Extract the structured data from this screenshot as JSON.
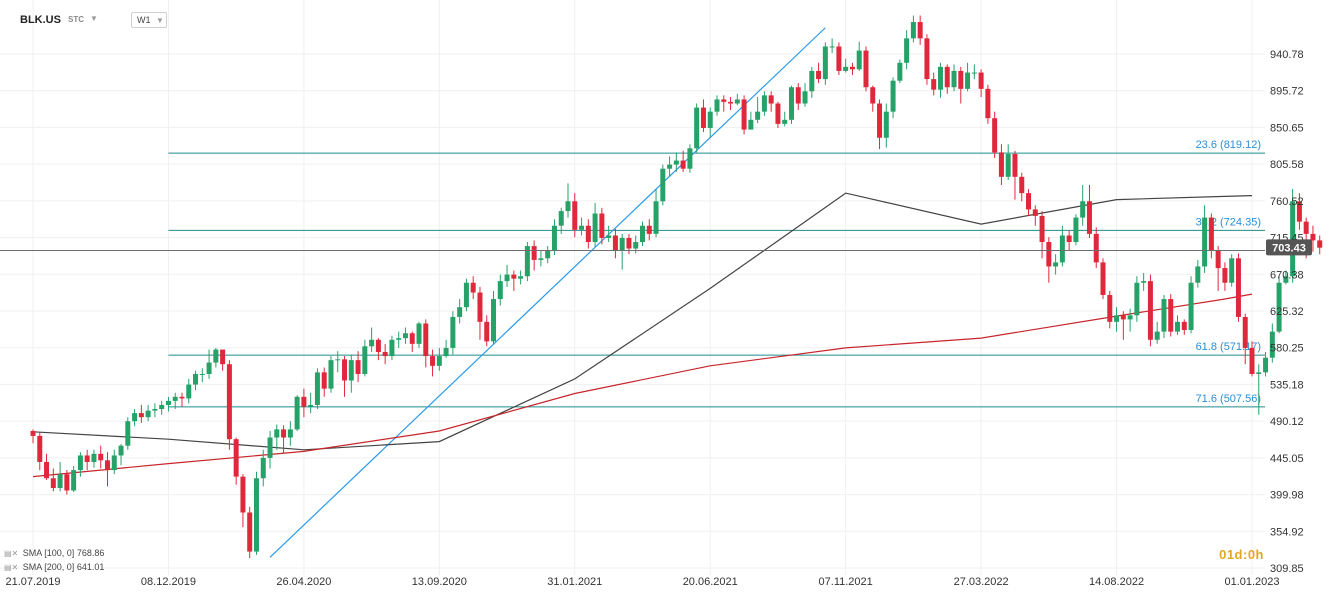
{
  "header": {
    "symbol": "BLK.US",
    "exchange": "STC",
    "timeframe": "W1"
  },
  "watermark": "01d:0h",
  "colors": {
    "up": "#26a269",
    "down": "#e0283c",
    "sma100": "#444444",
    "sma200": "#c8252b",
    "fib": "#1f8b8b",
    "fib_label": "#2a8fd6",
    "trendline": "#2a9bea",
    "price_badge": "#555555"
  },
  "chart_data": {
    "type": "candlestick",
    "title": "",
    "xlabel": "",
    "ylabel": "",
    "ylim": [
      300,
      997
    ],
    "y_ticks": [
      "940.78",
      "895.72",
      "850.65",
      "805.58",
      "760.52",
      "715.45",
      "670.38",
      "625.32",
      "580.25",
      "535.18",
      "490.12",
      "445.05",
      "399.98",
      "354.92",
      "309.85"
    ],
    "x_ticks": [
      "21.07.2019",
      "08.12.2019",
      "26.04.2020",
      "13.09.2020",
      "31.01.2021",
      "20.06.2021",
      "07.11.2021",
      "27.03.2022",
      "14.08.2022",
      "01.01.2023"
    ],
    "x_range": [
      "2019-07-21",
      "2023-01-01"
    ],
    "last_price": "703.43",
    "fib_levels": [
      {
        "ratio": "23.6",
        "value": 819.12,
        "label": "23.6 (819.12)"
      },
      {
        "ratio": "38.2",
        "value": 724.35,
        "label": "38.2 (724.35)"
      },
      {
        "ratio": "61.8",
        "value": 571.17,
        "label": "61.8 (571.17)"
      },
      {
        "ratio": "71.6",
        "value": 507.56,
        "label": "71.6 (507.56)"
      }
    ],
    "fib_start_date": "2019-12-08",
    "trendline": {
      "from": {
        "date": "2020-03-22",
        "value": 323
      },
      "to": {
        "date": "2021-10-17",
        "value": 973
      }
    },
    "series": [
      {
        "name": "SMA [100, 0]",
        "value": "768.86",
        "points": [
          [
            "2019-07-21",
            477
          ],
          [
            "2019-12-08",
            468
          ],
          [
            "2020-04-26",
            455
          ],
          [
            "2020-09-13",
            465
          ],
          [
            "2021-01-31",
            542
          ],
          [
            "2021-06-20",
            653
          ],
          [
            "2021-11-07",
            770
          ],
          [
            "2022-03-27",
            732
          ],
          [
            "2022-08-14",
            762
          ],
          [
            "2022-12-04",
            766
          ],
          [
            "2023-01-01",
            767
          ]
        ]
      },
      {
        "name": "SMA [200, 0]",
        "value": "641.01",
        "points": [
          [
            "2019-07-21",
            422
          ],
          [
            "2019-12-08",
            438
          ],
          [
            "2020-04-26",
            453
          ],
          [
            "2020-09-13",
            478
          ],
          [
            "2021-01-31",
            524
          ],
          [
            "2021-06-20",
            558
          ],
          [
            "2021-11-07",
            580
          ],
          [
            "2022-03-27",
            592
          ],
          [
            "2022-08-14",
            619
          ],
          [
            "2022-12-04",
            640
          ],
          [
            "2023-01-01",
            646
          ]
        ]
      }
    ],
    "candles": [
      [
        478,
        472,
        480,
        463
      ],
      [
        472,
        440,
        476,
        430
      ],
      [
        440,
        420,
        450,
        418
      ],
      [
        420,
        408,
        432,
        404
      ],
      [
        408,
        425,
        440,
        404
      ],
      [
        425,
        405,
        430,
        400
      ],
      [
        405,
        430,
        435,
        403
      ],
      [
        430,
        448,
        452,
        422
      ],
      [
        448,
        440,
        455,
        430
      ],
      [
        440,
        450,
        455,
        433
      ],
      [
        450,
        442,
        460,
        432
      ],
      [
        442,
        430,
        452,
        410
      ],
      [
        430,
        448,
        455,
        425
      ],
      [
        448,
        460,
        462,
        436
      ],
      [
        460,
        490,
        495,
        455
      ],
      [
        490,
        500,
        505,
        484
      ],
      [
        500,
        495,
        510,
        488
      ],
      [
        495,
        503,
        510,
        490
      ],
      [
        503,
        505,
        512,
        495
      ],
      [
        505,
        510,
        515,
        498
      ],
      [
        510,
        515,
        520,
        502
      ],
      [
        515,
        520,
        525,
        505
      ],
      [
        520,
        518,
        525,
        508
      ],
      [
        518,
        535,
        542,
        512
      ],
      [
        535,
        548,
        552,
        528
      ],
      [
        548,
        548,
        555,
        538
      ],
      [
        548,
        562,
        578,
        542
      ],
      [
        562,
        578,
        580,
        556
      ],
      [
        578,
        560,
        575,
        552
      ],
      [
        560,
        468,
        565,
        455
      ],
      [
        468,
        422,
        470,
        412
      ],
      [
        422,
        378,
        425,
        360
      ],
      [
        378,
        330,
        385,
        322
      ],
      [
        330,
        420,
        428,
        326
      ],
      [
        420,
        445,
        455,
        410
      ],
      [
        445,
        470,
        478,
        432
      ],
      [
        470,
        480,
        486,
        455
      ],
      [
        480,
        470,
        485,
        450
      ],
      [
        470,
        480,
        490,
        460
      ],
      [
        480,
        520,
        522,
        478
      ],
      [
        520,
        508,
        530,
        495
      ],
      [
        508,
        510,
        525,
        500
      ],
      [
        510,
        550,
        555,
        505
      ],
      [
        550,
        530,
        556,
        520
      ],
      [
        530,
        565,
        570,
        525
      ],
      [
        565,
        566,
        576,
        550
      ],
      [
        566,
        540,
        570,
        520
      ],
      [
        540,
        565,
        572,
        525
      ],
      [
        565,
        548,
        576,
        538
      ],
      [
        548,
        582,
        590,
        545
      ],
      [
        582,
        590,
        605,
        575
      ],
      [
        590,
        575,
        592,
        565
      ],
      [
        575,
        570,
        585,
        560
      ],
      [
        570,
        590,
        595,
        565
      ],
      [
        590,
        592,
        600,
        580
      ],
      [
        592,
        598,
        605,
        585
      ],
      [
        598,
        585,
        600,
        575
      ],
      [
        585,
        610,
        612,
        580
      ],
      [
        610,
        570,
        615,
        556
      ],
      [
        570,
        558,
        578,
        545
      ],
      [
        558,
        570,
        580,
        552
      ],
      [
        570,
        580,
        590,
        568
      ],
      [
        580,
        618,
        625,
        572
      ],
      [
        618,
        630,
        640,
        610
      ],
      [
        630,
        660,
        665,
        625
      ],
      [
        660,
        648,
        668,
        640
      ],
      [
        648,
        612,
        655,
        590
      ],
      [
        612,
        588,
        620,
        582
      ],
      [
        588,
        640,
        650,
        585
      ],
      [
        640,
        662,
        670,
        632
      ],
      [
        662,
        670,
        682,
        655
      ],
      [
        670,
        665,
        675,
        650
      ],
      [
        665,
        668,
        675,
        658
      ],
      [
        668,
        705,
        710,
        662
      ],
      [
        705,
        688,
        712,
        675
      ],
      [
        688,
        690,
        700,
        680
      ],
      [
        690,
        700,
        705,
        684
      ],
      [
        700,
        730,
        738,
        694
      ],
      [
        730,
        748,
        752,
        720
      ],
      [
        748,
        760,
        782,
        740
      ],
      [
        760,
        725,
        770,
        716
      ],
      [
        725,
        730,
        740,
        718
      ],
      [
        730,
        710,
        738,
        702
      ],
      [
        710,
        745,
        758,
        704
      ],
      [
        745,
        715,
        752,
        707
      ],
      [
        715,
        718,
        730,
        710
      ],
      [
        718,
        700,
        726,
        690
      ],
      [
        700,
        715,
        720,
        676
      ],
      [
        715,
        702,
        720,
        695
      ],
      [
        702,
        710,
        718,
        696
      ],
      [
        710,
        730,
        735,
        705
      ],
      [
        730,
        720,
        738,
        712
      ],
      [
        720,
        760,
        775,
        716
      ],
      [
        760,
        800,
        805,
        755
      ],
      [
        800,
        805,
        815,
        790
      ],
      [
        805,
        810,
        820,
        796
      ],
      [
        810,
        800,
        822,
        796
      ],
      [
        800,
        825,
        830,
        795
      ],
      [
        825,
        875,
        880,
        820
      ],
      [
        875,
        850,
        885,
        845
      ],
      [
        850,
        870,
        875,
        838
      ],
      [
        870,
        885,
        890,
        865
      ],
      [
        885,
        882,
        890,
        870
      ],
      [
        882,
        880,
        888,
        872
      ],
      [
        880,
        885,
        892,
        878
      ],
      [
        885,
        848,
        890,
        842
      ],
      [
        848,
        860,
        870,
        850
      ],
      [
        860,
        870,
        888,
        856
      ],
      [
        870,
        890,
        895,
        865
      ],
      [
        890,
        880,
        895,
        870
      ],
      [
        880,
        855,
        882,
        850
      ],
      [
        855,
        860,
        870,
        852
      ],
      [
        860,
        900,
        902,
        855
      ],
      [
        900,
        880,
        905,
        872
      ],
      [
        880,
        895,
        905,
        876
      ],
      [
        895,
        920,
        925,
        887
      ],
      [
        920,
        910,
        930,
        905
      ],
      [
        910,
        950,
        955,
        903
      ],
      [
        950,
        950,
        960,
        942
      ],
      [
        950,
        920,
        955,
        915
      ],
      [
        920,
        925,
        935,
        918
      ],
      [
        925,
        922,
        930,
        915
      ],
      [
        922,
        945,
        956,
        920
      ],
      [
        945,
        900,
        950,
        895
      ],
      [
        900,
        880,
        902,
        870
      ],
      [
        880,
        838,
        885,
        824
      ],
      [
        838,
        870,
        880,
        826
      ],
      [
        870,
        908,
        912,
        862
      ],
      [
        908,
        930,
        934,
        905
      ],
      [
        930,
        960,
        970,
        922
      ],
      [
        960,
        980,
        988,
        955
      ],
      [
        980,
        960,
        988,
        952
      ],
      [
        960,
        910,
        965,
        903
      ],
      [
        910,
        897,
        918,
        890
      ],
      [
        897,
        925,
        930,
        887
      ],
      [
        925,
        900,
        928,
        892
      ],
      [
        900,
        920,
        928,
        895
      ],
      [
        920,
        898,
        925,
        880
      ],
      [
        898,
        918,
        930,
        895
      ],
      [
        918,
        918,
        928,
        910
      ],
      [
        918,
        898,
        922,
        888
      ],
      [
        898,
        862,
        903,
        855
      ],
      [
        862,
        820,
        870,
        813
      ],
      [
        820,
        790,
        830,
        780
      ],
      [
        790,
        818,
        830,
        786
      ],
      [
        818,
        790,
        822,
        762
      ],
      [
        790,
        770,
        795,
        760
      ],
      [
        770,
        750,
        775,
        742
      ],
      [
        750,
        742,
        755,
        730
      ],
      [
        742,
        710,
        748,
        690
      ],
      [
        710,
        680,
        716,
        660
      ],
      [
        680,
        685,
        695,
        670
      ],
      [
        685,
        718,
        730,
        680
      ],
      [
        718,
        710,
        724,
        700
      ],
      [
        710,
        740,
        744,
        706
      ],
      [
        740,
        760,
        780,
        730
      ],
      [
        760,
        720,
        780,
        715
      ],
      [
        720,
        685,
        728,
        678
      ],
      [
        685,
        645,
        690,
        640
      ],
      [
        645,
        612,
        650,
        604
      ],
      [
        612,
        620,
        630,
        600
      ],
      [
        620,
        615,
        625,
        590
      ],
      [
        615,
        620,
        628,
        600
      ],
      [
        620,
        660,
        668,
        612
      ],
      [
        660,
        662,
        672,
        650
      ],
      [
        662,
        590,
        670,
        582
      ],
      [
        590,
        600,
        612,
        585
      ],
      [
        600,
        640,
        645,
        592
      ],
      [
        640,
        600,
        646,
        594
      ],
      [
        600,
        612,
        620,
        596
      ],
      [
        612,
        602,
        615,
        596
      ],
      [
        602,
        660,
        668,
        598
      ],
      [
        660,
        680,
        688,
        654
      ],
      [
        680,
        740,
        755,
        672
      ],
      [
        740,
        700,
        745,
        690
      ],
      [
        700,
        678,
        705,
        650
      ],
      [
        678,
        660,
        685,
        650
      ],
      [
        660,
        690,
        695,
        655
      ],
      [
        690,
        618,
        696,
        612
      ],
      [
        618,
        580,
        622,
        560
      ],
      [
        580,
        548,
        588,
        545
      ],
      [
        548,
        550,
        560,
        498
      ],
      [
        550,
        568,
        575,
        545
      ],
      [
        568,
        600,
        610,
        562
      ],
      [
        600,
        660,
        668,
        598
      ],
      [
        660,
        668,
        675,
        658
      ],
      [
        668,
        760,
        775,
        660
      ],
      [
        760,
        735,
        770,
        725
      ],
      [
        735,
        720,
        740,
        690
      ],
      [
        720,
        712,
        730,
        698
      ],
      [
        712,
        703,
        718,
        695
      ]
    ]
  }
}
